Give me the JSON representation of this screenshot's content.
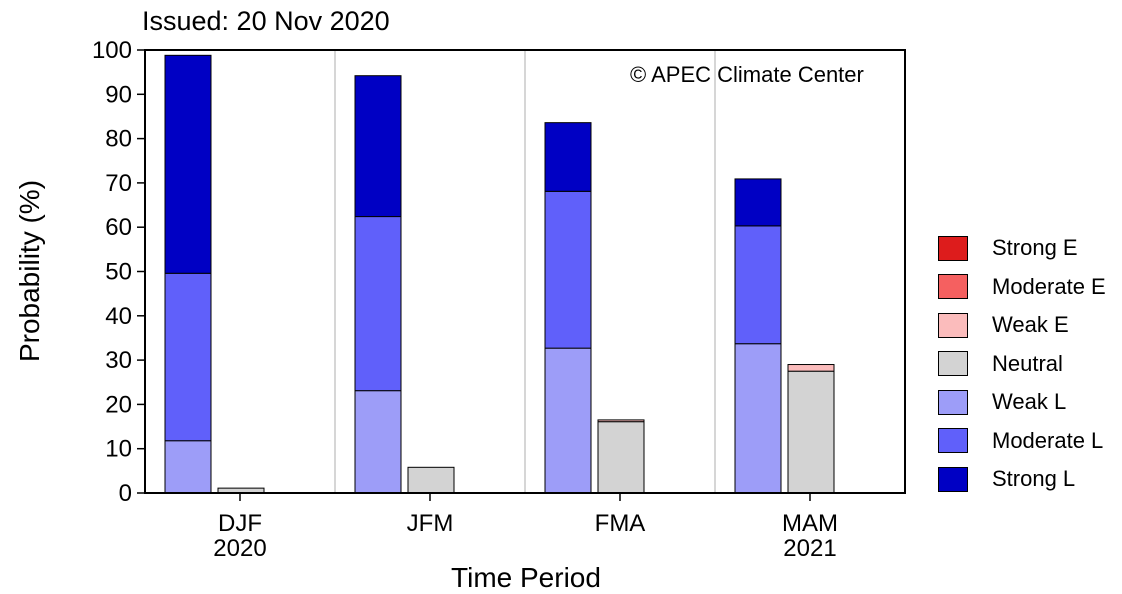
{
  "title": "Issued: 20 Nov 2020",
  "copyright": "© APEC Climate Center",
  "colors": {
    "Strong E": "#dd1c1c",
    "Moderate E": "#f56060",
    "Weak E": "#fbbcbc",
    "Neutral": "#d3d3d3",
    "Weak L": "#9d9df8",
    "Moderate L": "#6060fa",
    "Strong L": "#0000c4"
  },
  "chart_data": {
    "type": "bar",
    "title": "Issued: 20 Nov 2020",
    "xlabel": "Time Period",
    "ylabel": "Probability (%)",
    "ylim": [
      0,
      100
    ],
    "yticks": [
      0,
      10,
      20,
      30,
      40,
      50,
      60,
      70,
      80,
      90,
      100
    ],
    "grid": "vertical separators between periods",
    "legend_position": "right",
    "categories": [
      {
        "label": "DJF",
        "sublabel": "2020"
      },
      {
        "label": "JFM",
        "sublabel": ""
      },
      {
        "label": "FMA",
        "sublabel": ""
      },
      {
        "label": "MAM",
        "sublabel": "2021"
      }
    ],
    "legend": [
      "Strong E",
      "Moderate E",
      "Weak E",
      "Neutral",
      "Weak L",
      "Moderate L",
      "Strong L"
    ],
    "series": [
      {
        "name": "Weak L",
        "values": [
          11.8,
          23.1,
          32.7,
          33.7
        ]
      },
      {
        "name": "Moderate L",
        "values": [
          37.8,
          39.3,
          35.4,
          26.6
        ]
      },
      {
        "name": "Strong L",
        "values": [
          49.2,
          31.8,
          15.5,
          10.6
        ]
      },
      {
        "name": "Neutral",
        "values": [
          1.1,
          5.8,
          16.1,
          27.5
        ]
      },
      {
        "name": "Weak E",
        "values": [
          0.0,
          0.0,
          0.4,
          1.5
        ]
      },
      {
        "name": "Moderate E",
        "values": [
          0,
          0,
          0,
          0
        ]
      },
      {
        "name": "Strong E",
        "values": [
          0,
          0,
          0,
          0
        ]
      }
    ]
  }
}
